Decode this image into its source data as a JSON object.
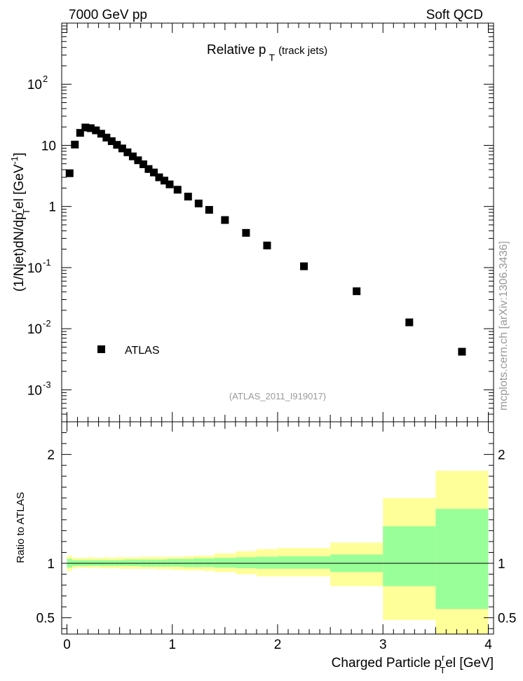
{
  "header": {
    "left": "7000 GeV pp",
    "right": "Soft QCD"
  },
  "side_label": "mcplots.cern.ch [arXiv:1306.3436]",
  "chart_data": [
    {
      "type": "scatter",
      "title_main": "Relative p",
      "title_sub": "T",
      "title_suffix": "(track jets)",
      "analysis_label": "(ATLAS_2011_I919017)",
      "ylabel_text": "(1/Njet)dN/dp",
      "ylabel_sup_r": "r",
      "ylabel_sub_T": "T",
      "ylabel_tail": "el [GeV",
      "ylabel_sup_unit": "-1",
      "ylabel_close": "]",
      "yscale": "log",
      "ylim": [
        0.0003,
        1000
      ],
      "xlim": [
        -0.05,
        4.05
      ],
      "y_ticks": [
        {
          "value": 0.001,
          "base": "10",
          "exp": "-3"
        },
        {
          "value": 0.01,
          "base": "10",
          "exp": "-2"
        },
        {
          "value": 0.1,
          "base": "10",
          "exp": "-1"
        },
        {
          "value": 1,
          "base": "1",
          "exp": ""
        },
        {
          "value": 10,
          "base": "10",
          "exp": ""
        },
        {
          "value": 100,
          "base": "10",
          "exp": "2"
        }
      ],
      "legend": [
        {
          "name": "ATLAS",
          "marker": "square",
          "color": "#000000"
        }
      ],
      "series": [
        {
          "name": "ATLAS",
          "color": "#000000",
          "points": [
            {
              "x": 0.025,
              "y": 3.5
            },
            {
              "x": 0.075,
              "y": 10.3
            },
            {
              "x": 0.125,
              "y": 16.0
            },
            {
              "x": 0.175,
              "y": 19.6
            },
            {
              "x": 0.225,
              "y": 19.1
            },
            {
              "x": 0.275,
              "y": 17.6
            },
            {
              "x": 0.325,
              "y": 15.5
            },
            {
              "x": 0.375,
              "y": 13.4
            },
            {
              "x": 0.425,
              "y": 11.7
            },
            {
              "x": 0.475,
              "y": 10.2
            },
            {
              "x": 0.525,
              "y": 8.9
            },
            {
              "x": 0.575,
              "y": 7.7
            },
            {
              "x": 0.625,
              "y": 6.6
            },
            {
              "x": 0.675,
              "y": 5.7
            },
            {
              "x": 0.725,
              "y": 4.9
            },
            {
              "x": 0.775,
              "y": 4.1
            },
            {
              "x": 0.825,
              "y": 3.6
            },
            {
              "x": 0.875,
              "y": 3.0
            },
            {
              "x": 0.925,
              "y": 2.65
            },
            {
              "x": 0.975,
              "y": 2.3
            },
            {
              "x": 1.05,
              "y": 1.88
            },
            {
              "x": 1.15,
              "y": 1.45
            },
            {
              "x": 1.25,
              "y": 1.12
            },
            {
              "x": 1.35,
              "y": 0.88
            },
            {
              "x": 1.5,
              "y": 0.6
            },
            {
              "x": 1.7,
              "y": 0.37
            },
            {
              "x": 1.9,
              "y": 0.23
            },
            {
              "x": 2.25,
              "y": 0.105
            },
            {
              "x": 2.75,
              "y": 0.041
            },
            {
              "x": 3.25,
              "y": 0.0127
            },
            {
              "x": 3.75,
              "y": 0.0042
            }
          ]
        }
      ]
    },
    {
      "type": "area",
      "ylabel": "Ratio to ATLAS",
      "xlabel_text": "Charged Particle p",
      "xlabel_sup_r": "r",
      "xlabel_sub_T": "T",
      "xlabel_tail": "el [GeV]",
      "ylim": [
        0.35,
        2.3
      ],
      "xlim": [
        -0.05,
        4.05
      ],
      "x_ticks": [
        "0",
        "1",
        "2",
        "3",
        "4"
      ],
      "y_ticks": [
        "0.5",
        "1",
        "2"
      ],
      "reference_line": 1,
      "bands": {
        "yellow_color": "#ffff99",
        "green_color": "#99ff99",
        "bins": [
          {
            "x0": 0.0,
            "x1": 0.05,
            "yellow": [
              0.93,
              1.07
            ],
            "green": [
              0.96,
              1.04
            ]
          },
          {
            "x0": 0.05,
            "x1": 0.1,
            "yellow": [
              0.955,
              1.05
            ],
            "green": [
              0.975,
              1.03
            ]
          },
          {
            "x0": 0.1,
            "x1": 0.15,
            "yellow": [
              0.96,
              1.05
            ],
            "green": [
              0.975,
              1.03
            ]
          },
          {
            "x0": 0.15,
            "x1": 0.2,
            "yellow": [
              0.96,
              1.05
            ],
            "green": [
              0.975,
              1.03
            ]
          },
          {
            "x0": 0.2,
            "x1": 0.25,
            "yellow": [
              0.955,
              1.055
            ],
            "green": [
              0.975,
              1.03
            ]
          },
          {
            "x0": 0.25,
            "x1": 0.3,
            "yellow": [
              0.96,
              1.05
            ],
            "green": [
              0.975,
              1.03
            ]
          },
          {
            "x0": 0.3,
            "x1": 0.35,
            "yellow": [
              0.955,
              1.05
            ],
            "green": [
              0.975,
              1.03
            ]
          },
          {
            "x0": 0.35,
            "x1": 0.4,
            "yellow": [
              0.955,
              1.055
            ],
            "green": [
              0.975,
              1.03
            ]
          },
          {
            "x0": 0.4,
            "x1": 0.45,
            "yellow": [
              0.955,
              1.05
            ],
            "green": [
              0.975,
              1.03
            ]
          },
          {
            "x0": 0.45,
            "x1": 0.5,
            "yellow": [
              0.955,
              1.055
            ],
            "green": [
              0.975,
              1.03
            ]
          },
          {
            "x0": 0.5,
            "x1": 0.55,
            "yellow": [
              0.95,
              1.055
            ],
            "green": [
              0.975,
              1.03
            ]
          },
          {
            "x0": 0.55,
            "x1": 0.6,
            "yellow": [
              0.95,
              1.055
            ],
            "green": [
              0.975,
              1.035
            ]
          },
          {
            "x0": 0.6,
            "x1": 0.65,
            "yellow": [
              0.95,
              1.055
            ],
            "green": [
              0.975,
              1.035
            ]
          },
          {
            "x0": 0.65,
            "x1": 0.7,
            "yellow": [
              0.95,
              1.055
            ],
            "green": [
              0.975,
              1.035
            ]
          },
          {
            "x0": 0.7,
            "x1": 0.75,
            "yellow": [
              0.95,
              1.06
            ],
            "green": [
              0.97,
              1.035
            ]
          },
          {
            "x0": 0.75,
            "x1": 0.8,
            "yellow": [
              0.95,
              1.06
            ],
            "green": [
              0.97,
              1.035
            ]
          },
          {
            "x0": 0.8,
            "x1": 0.85,
            "yellow": [
              0.95,
              1.06
            ],
            "green": [
              0.97,
              1.035
            ]
          },
          {
            "x0": 0.85,
            "x1": 0.9,
            "yellow": [
              0.945,
              1.06
            ],
            "green": [
              0.97,
              1.035
            ]
          },
          {
            "x0": 0.9,
            "x1": 0.95,
            "yellow": [
              0.945,
              1.06
            ],
            "green": [
              0.97,
              1.035
            ]
          },
          {
            "x0": 0.95,
            "x1": 1.0,
            "yellow": [
              0.945,
              1.06
            ],
            "green": [
              0.97,
              1.04
            ]
          },
          {
            "x0": 1.0,
            "x1": 1.1,
            "yellow": [
              0.94,
              1.06
            ],
            "green": [
              0.97,
              1.04
            ]
          },
          {
            "x0": 1.1,
            "x1": 1.2,
            "yellow": [
              0.935,
              1.065
            ],
            "green": [
              0.965,
              1.04
            ]
          },
          {
            "x0": 1.2,
            "x1": 1.3,
            "yellow": [
              0.935,
              1.07
            ],
            "green": [
              0.965,
              1.045
            ]
          },
          {
            "x0": 1.3,
            "x1": 1.4,
            "yellow": [
              0.93,
              1.07
            ],
            "green": [
              0.965,
              1.045
            ]
          },
          {
            "x0": 1.4,
            "x1": 1.6,
            "yellow": [
              0.92,
              1.09
            ],
            "green": [
              0.96,
              1.05
            ]
          },
          {
            "x0": 1.6,
            "x1": 1.8,
            "yellow": [
              0.9,
              1.11
            ],
            "green": [
              0.955,
              1.055
            ]
          },
          {
            "x0": 1.8,
            "x1": 2.0,
            "yellow": [
              0.88,
              1.13
            ],
            "green": [
              0.95,
              1.06
            ]
          },
          {
            "x0": 2.0,
            "x1": 2.5,
            "yellow": [
              0.88,
              1.14
            ],
            "green": [
              0.95,
              1.065
            ]
          },
          {
            "x0": 2.5,
            "x1": 3.0,
            "yellow": [
              0.79,
              1.19
            ],
            "green": [
              0.92,
              1.08
            ]
          },
          {
            "x0": 3.0,
            "x1": 3.5,
            "yellow": [
              0.48,
              1.6
            ],
            "green": [
              0.79,
              1.34
            ]
          },
          {
            "x0": 3.5,
            "x1": 4.0,
            "yellow": [
              0.35,
              1.85
            ],
            "green": [
              0.58,
              1.5
            ]
          }
        ]
      }
    }
  ]
}
